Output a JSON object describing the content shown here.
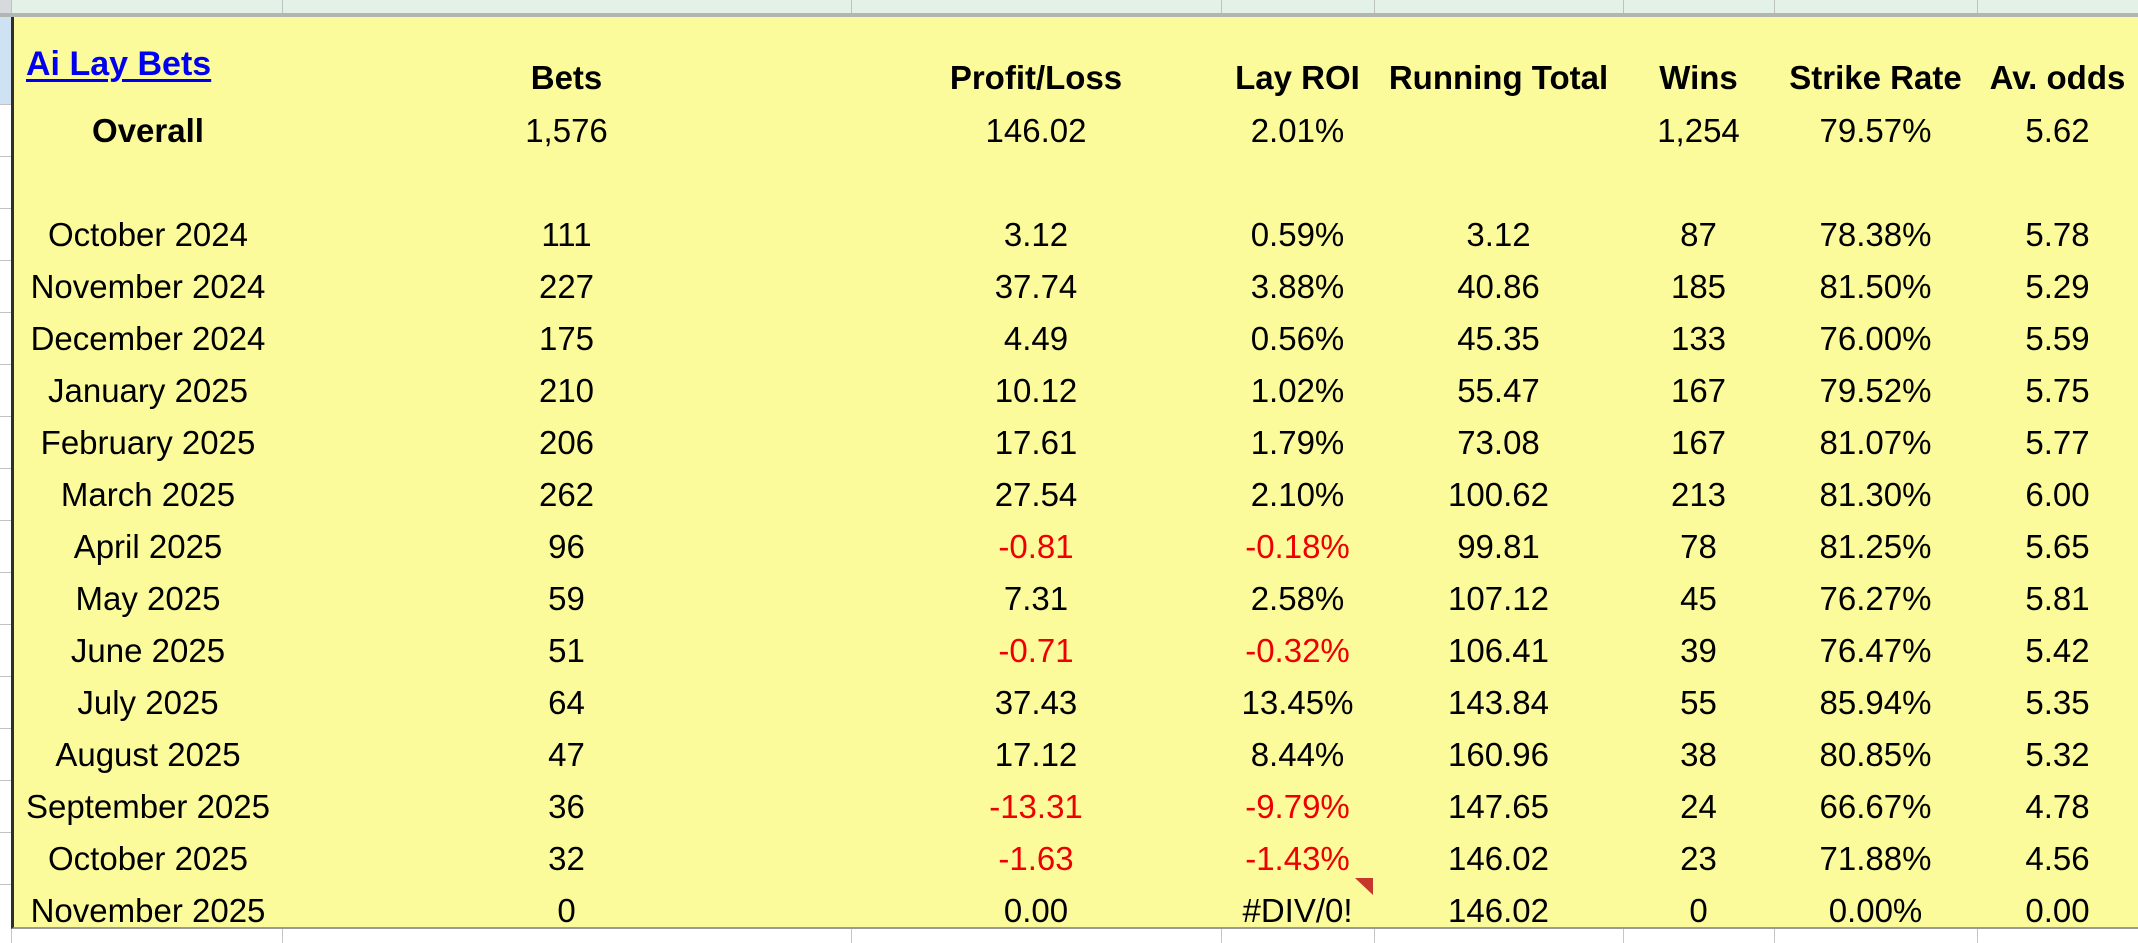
{
  "sheet": {
    "title": "Ai Lay Bets",
    "columns": [
      "Bets",
      "Profit/Loss",
      "Lay ROI",
      "Running Total",
      "Wins",
      "Strike Rate",
      "Av. odds"
    ],
    "rows": [
      {
        "label": "Overall",
        "bold": true,
        "values": [
          "1,576",
          "146.02",
          "2.01%",
          "",
          "1,254",
          "79.57%",
          "5.62"
        ]
      },
      {
        "label": "",
        "values": [
          "",
          "",
          "",
          "",
          "",
          "",
          ""
        ]
      },
      {
        "label": "October 2024",
        "values": [
          "111",
          "3.12",
          "0.59%",
          "3.12",
          "87",
          "78.38%",
          "5.78"
        ]
      },
      {
        "label": "November 2024",
        "values": [
          "227",
          "37.74",
          "3.88%",
          "40.86",
          "185",
          "81.50%",
          "5.29"
        ]
      },
      {
        "label": "December 2024",
        "values": [
          "175",
          "4.49",
          "0.56%",
          "45.35",
          "133",
          "76.00%",
          "5.59"
        ]
      },
      {
        "label": "January 2025",
        "values": [
          "210",
          "10.12",
          "1.02%",
          "55.47",
          "167",
          "79.52%",
          "5.75"
        ]
      },
      {
        "label": "February 2025",
        "values": [
          "206",
          "17.61",
          "1.79%",
          "73.08",
          "167",
          "81.07%",
          "5.77"
        ]
      },
      {
        "label": "March 2025",
        "values": [
          "262",
          "27.54",
          "2.10%",
          "100.62",
          "213",
          "81.30%",
          "6.00"
        ]
      },
      {
        "label": "April 2025",
        "values": [
          "96",
          "-0.81",
          "-0.18%",
          "99.81",
          "78",
          "81.25%",
          "5.65"
        ]
      },
      {
        "label": "May 2025",
        "values": [
          "59",
          "7.31",
          "2.58%",
          "107.12",
          "45",
          "76.27%",
          "5.81"
        ]
      },
      {
        "label": "June 2025",
        "values": [
          "51",
          "-0.71",
          "-0.32%",
          "106.41",
          "39",
          "76.47%",
          "5.42"
        ]
      },
      {
        "label": "July 2025",
        "values": [
          "64",
          "37.43",
          "13.45%",
          "143.84",
          "55",
          "85.94%",
          "5.35"
        ]
      },
      {
        "label": "August 2025",
        "values": [
          "47",
          "17.12",
          "8.44%",
          "160.96",
          "38",
          "80.85%",
          "5.32"
        ]
      },
      {
        "label": "September 2025",
        "values": [
          "36",
          "-13.31",
          "-9.79%",
          "147.65",
          "24",
          "66.67%",
          "4.78"
        ]
      },
      {
        "label": "October 2025",
        "values": [
          "32",
          "-1.63",
          "-1.43%",
          "146.02",
          "23",
          "71.88%",
          "4.56"
        ]
      },
      {
        "label": "November 2025",
        "values": [
          "0",
          "0.00",
          "#DIV/0!",
          "146.02",
          "0",
          "0.00%",
          "0.00"
        ],
        "note_on_column": "Lay ROI"
      }
    ],
    "colors": {
      "cell_fill": "#FBFB9B",
      "link": "#0000EE",
      "negative_text": "#EE0000",
      "note_marker": "#C4392B"
    }
  }
}
